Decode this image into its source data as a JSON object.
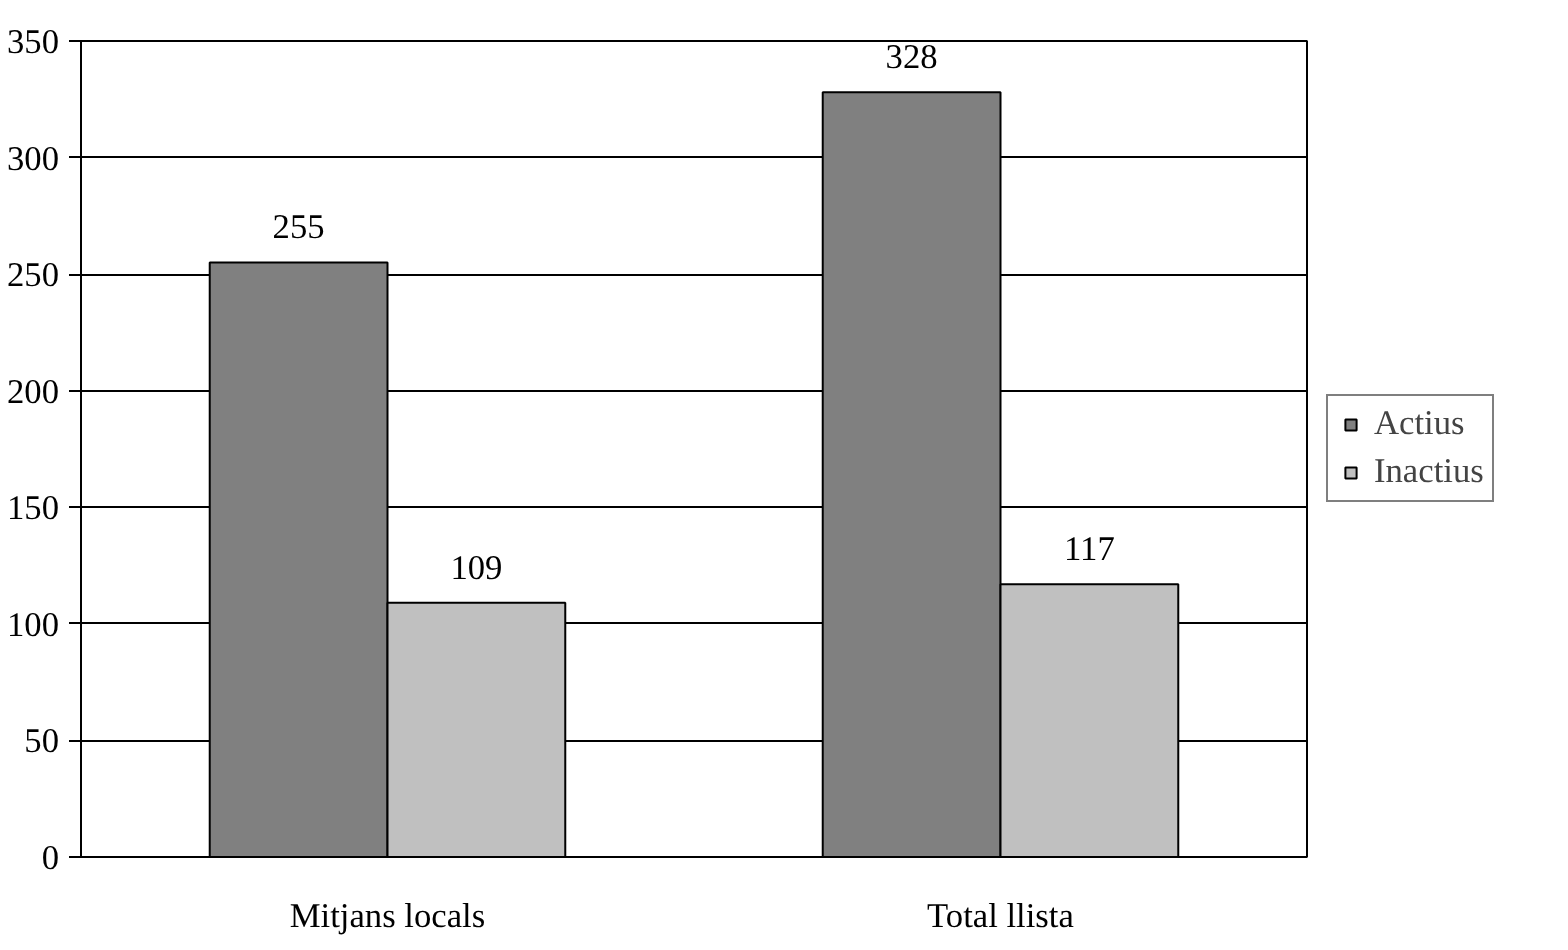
{
  "chart_data": {
    "type": "bar",
    "categories": [
      "Mitjans locals",
      "Total llista"
    ],
    "series": [
      {
        "name": "Actius",
        "color": "#808080",
        "values": [
          255,
          328
        ]
      },
      {
        "name": "Inactius",
        "color": "#c0c0c0",
        "values": [
          109,
          117
        ]
      }
    ],
    "ylim": [
      0,
      350
    ],
    "yticks": [
      0,
      50,
      100,
      150,
      200,
      250,
      300,
      350
    ],
    "grid": "y",
    "legend": "right",
    "data_labels": true
  }
}
